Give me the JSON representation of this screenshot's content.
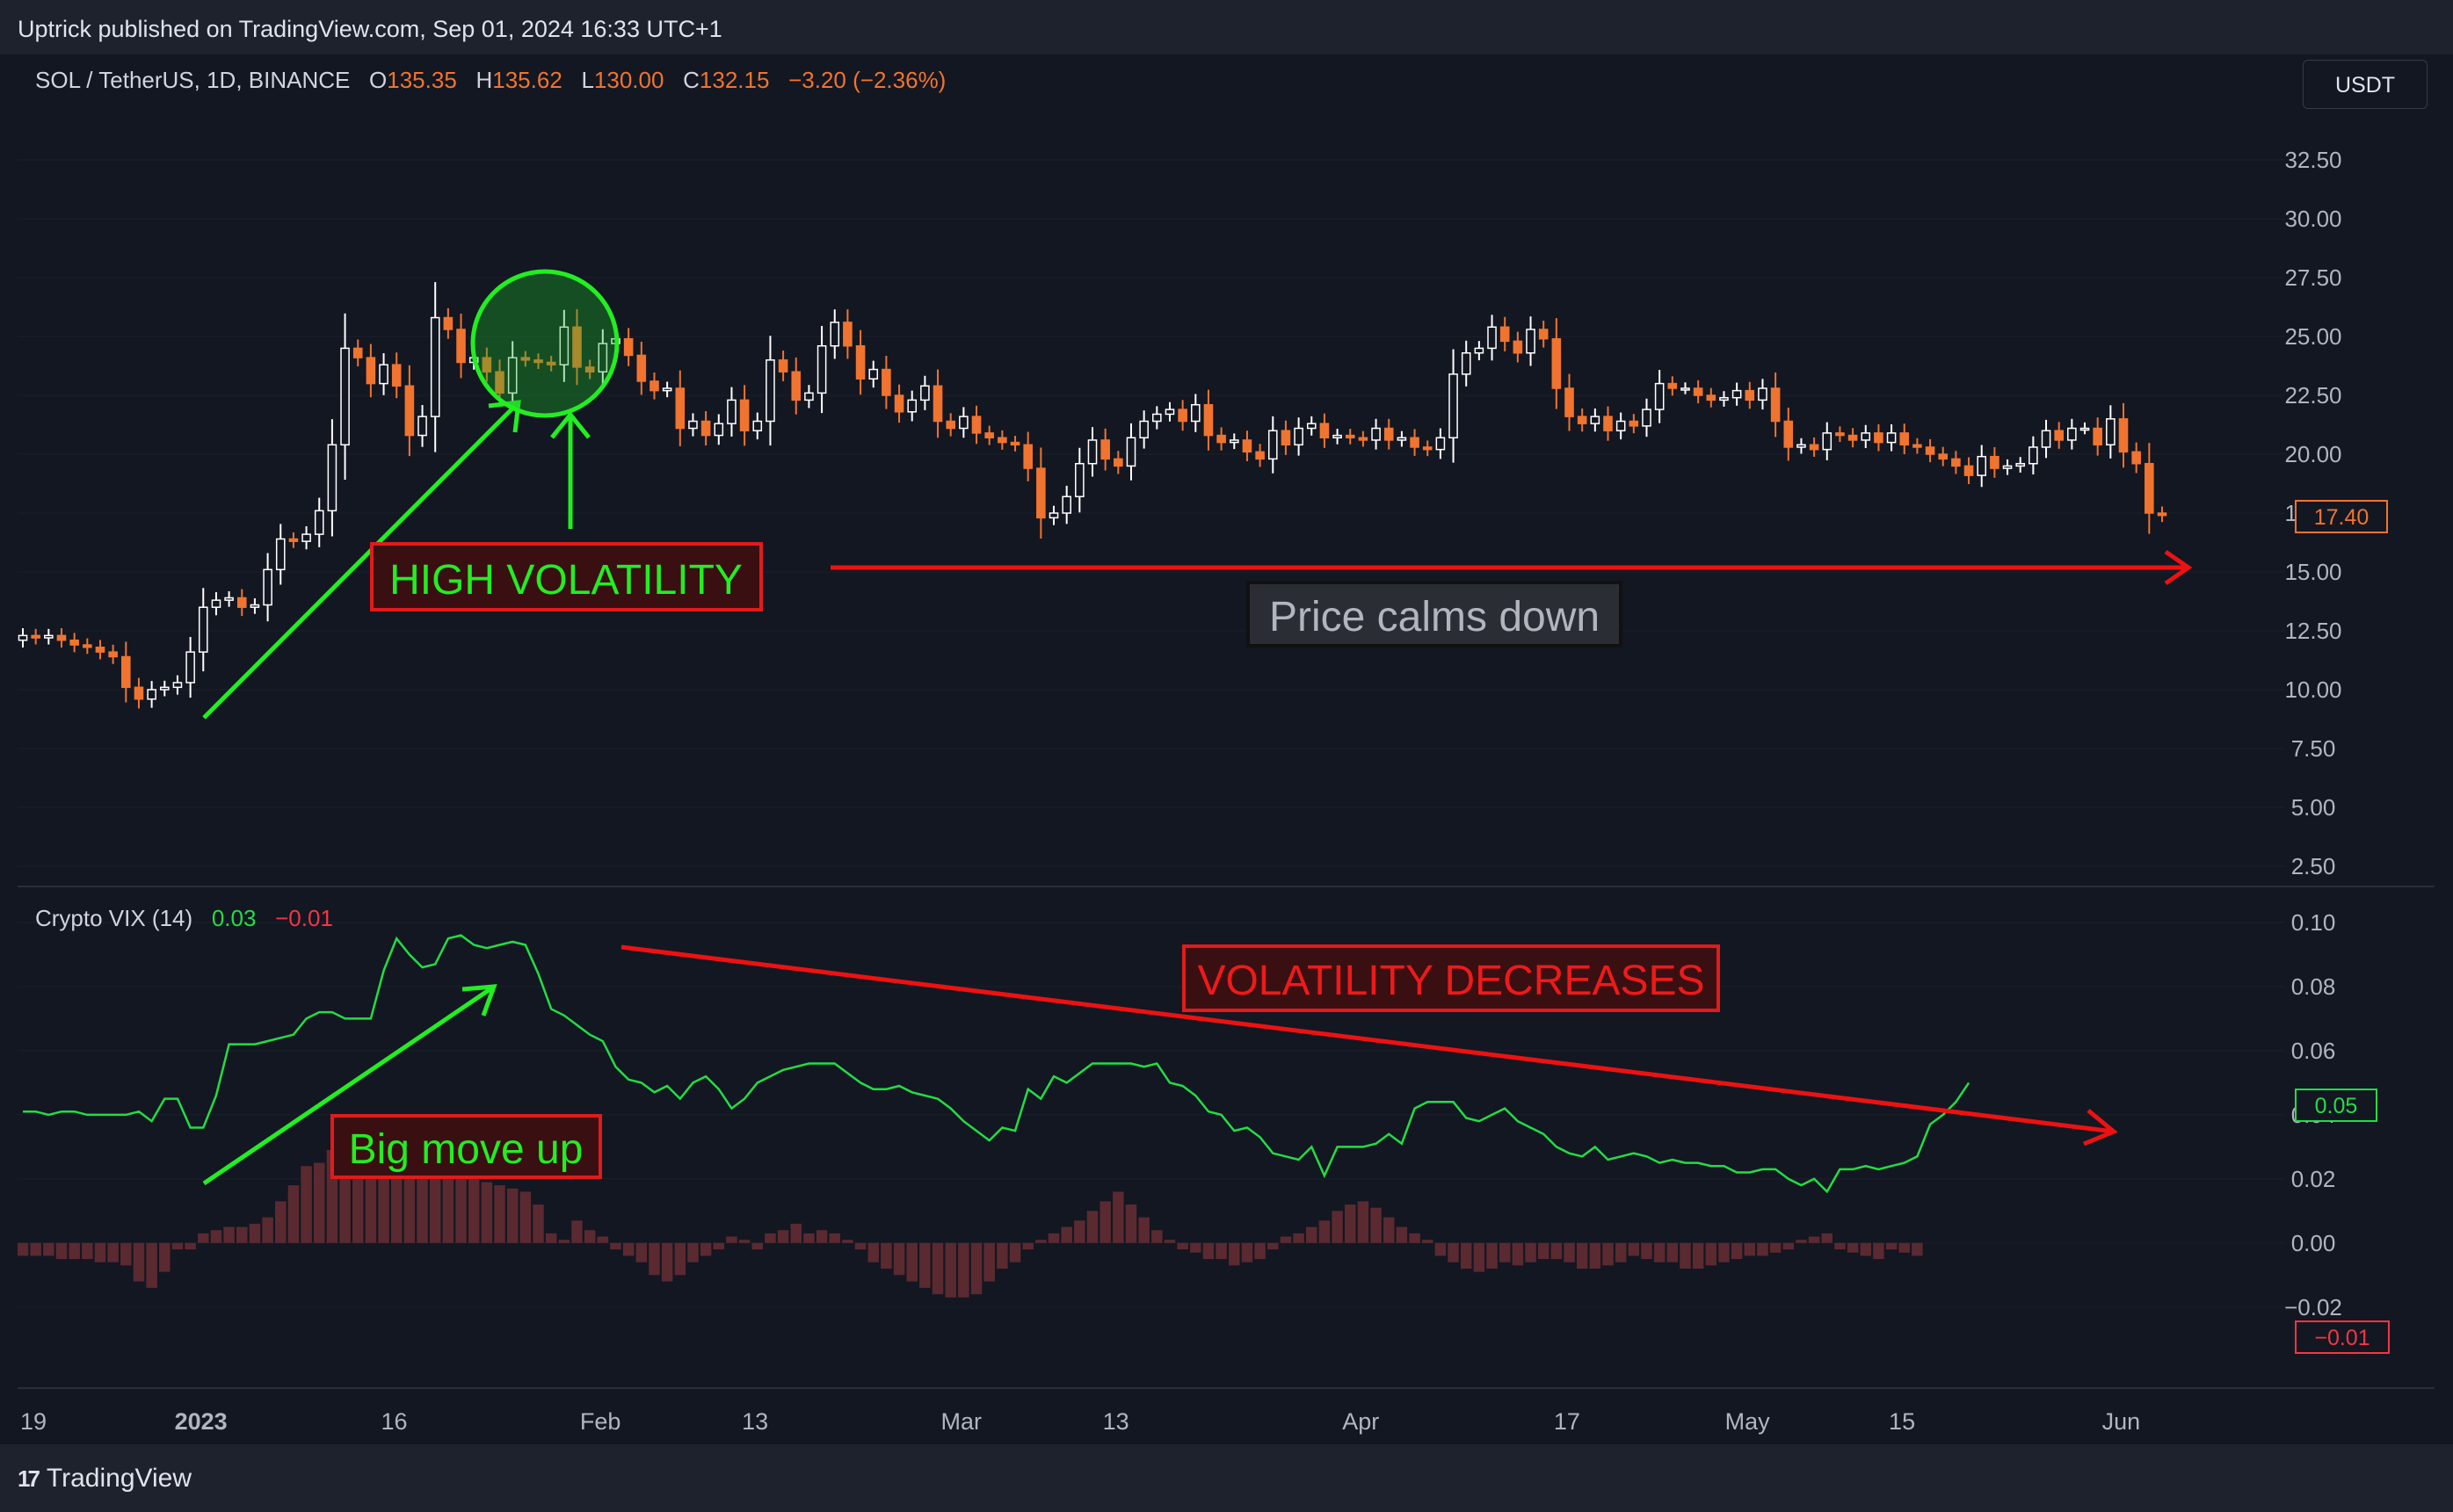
{
  "header": {
    "published": "Uptrick published on TradingView.com, Sep 01, 2024 16:33 UTC+1"
  },
  "footer": {
    "brand": "TradingView"
  },
  "currency": "USDT",
  "legend_main": {
    "symbol": "SOL / TetherUS, 1D, BINANCE",
    "o_label": "O",
    "o": "135.35",
    "h_label": "H",
    "h": "135.62",
    "l_label": "L",
    "l": "130.00",
    "c_label": "C",
    "c": "132.15",
    "change": "−3.20 (−2.36%)"
  },
  "legend_vix": {
    "name": "Crypto VIX (14)",
    "v1": "0.03",
    "v2": "−0.01"
  },
  "annotations": {
    "high_volatility": "HIGH VOLATILITY",
    "price_calms": "Price calms down",
    "vol_decreases": "VOLATILITY DECREASES",
    "big_move": "Big move up"
  },
  "colors": {
    "up": "#ffffff",
    "down": "#f0742f",
    "vix_line": "#22dd44",
    "histogram": "#5a2a30",
    "arrow_green": "#22ee22",
    "arrow_red": "#ee1111",
    "background": "#131722"
  },
  "chart_data": [
    {
      "type": "candlestick",
      "title": "SOL / TetherUS, 1D, BINANCE",
      "y_ticks": [
        "32.50",
        "30.00",
        "27.50",
        "25.00",
        "22.50",
        "20.00",
        "17.50",
        "15.00",
        "12.50",
        "10.00",
        "7.50",
        "5.00",
        "2.50"
      ],
      "ylim": [
        2.5,
        32.5
      ],
      "x_ticks": [
        "19",
        "2023",
        "16",
        "Feb",
        "13",
        "Mar",
        "13",
        "Apr",
        "17",
        "May",
        "15",
        "Jun"
      ],
      "last_price_label": "17.40",
      "closes": [
        12.3,
        12.2,
        12.3,
        12.1,
        11.9,
        11.8,
        11.6,
        11.4,
        10.1,
        9.6,
        10.0,
        10.1,
        10.3,
        11.6,
        13.5,
        13.8,
        13.9,
        13.5,
        13.6,
        15.1,
        16.4,
        16.3,
        16.6,
        17.6,
        20.4,
        24.5,
        24.1,
        23.0,
        23.8,
        22.9,
        20.8,
        21.6,
        25.8,
        25.3,
        23.9,
        24.1,
        23.5,
        22.6,
        24.1,
        24.0,
        23.9,
        23.8,
        25.4,
        23.7,
        23.5,
        24.7,
        24.9,
        24.2,
        23.1,
        22.7,
        22.8,
        21.1,
        21.4,
        20.8,
        21.3,
        22.3,
        21.0,
        21.4,
        24.0,
        23.5,
        22.3,
        22.6,
        24.6,
        25.6,
        24.6,
        23.2,
        23.6,
        22.5,
        21.8,
        22.3,
        22.9,
        21.4,
        21.1,
        21.6,
        20.9,
        20.7,
        20.5,
        20.4,
        19.4,
        17.3,
        17.5,
        18.2,
        19.6,
        20.6,
        19.8,
        19.5,
        20.7,
        21.4,
        21.7,
        21.9,
        21.4,
        22.1,
        20.8,
        20.5,
        20.6,
        20.1,
        19.8,
        21.0,
        20.4,
        21.1,
        21.3,
        20.7,
        20.8,
        20.7,
        20.6,
        21.1,
        20.6,
        20.7,
        20.3,
        20.2,
        20.7,
        23.4,
        24.3,
        24.5,
        25.4,
        24.8,
        24.3,
        25.3,
        24.9,
        22.8,
        21.6,
        21.3,
        21.6,
        21.0,
        21.4,
        21.2,
        21.9,
        23.0,
        22.8,
        22.8,
        22.5,
        22.3,
        22.4,
        22.7,
        22.3,
        22.8,
        21.4,
        20.3,
        20.4,
        20.2,
        20.9,
        20.8,
        20.6,
        20.9,
        20.5,
        20.9,
        20.4,
        20.3,
        20.0,
        19.8,
        19.5,
        19.1,
        19.9,
        19.4,
        19.5,
        19.6,
        20.3,
        21.0,
        20.6,
        21.1,
        21.1,
        20.4,
        21.5,
        20.1,
        19.6,
        17.5,
        17.4
      ]
    },
    {
      "type": "line",
      "title": "Crypto VIX (14)",
      "y_ticks": [
        "0.10",
        "0.08",
        "0.06",
        "0.04",
        "0.02",
        "0.00",
        "−0.02"
      ],
      "ylim": [
        -0.025,
        0.1
      ],
      "last_value_labels": [
        "0.05",
        "−0.01"
      ],
      "series": [
        {
          "values": [
            0.041,
            0.041,
            0.04,
            0.041,
            0.041,
            0.04,
            0.04,
            0.04,
            0.04,
            0.041,
            0.038,
            0.045,
            0.045,
            0.036,
            0.036,
            0.046,
            0.062,
            0.062,
            0.062,
            0.063,
            0.064,
            0.065,
            0.07,
            0.072,
            0.072,
            0.07,
            0.07,
            0.07,
            0.085,
            0.095,
            0.09,
            0.086,
            0.087,
            0.095,
            0.096,
            0.093,
            0.092,
            0.093,
            0.094,
            0.093,
            0.084,
            0.073,
            0.071,
            0.068,
            0.065,
            0.063,
            0.055,
            0.051,
            0.05,
            0.047,
            0.049,
            0.045,
            0.05,
            0.052,
            0.048,
            0.042,
            0.045,
            0.05,
            0.052,
            0.054,
            0.055,
            0.056,
            0.056,
            0.056,
            0.053,
            0.05,
            0.048,
            0.048,
            0.049,
            0.047,
            0.046,
            0.045,
            0.042,
            0.038,
            0.035,
            0.032,
            0.036,
            0.035,
            0.048,
            0.045,
            0.052,
            0.05,
            0.053,
            0.056,
            0.056,
            0.056,
            0.056,
            0.055,
            0.056,
            0.05,
            0.049,
            0.046,
            0.041,
            0.04,
            0.035,
            0.036,
            0.033,
            0.028,
            0.027,
            0.026,
            0.03,
            0.021,
            0.03,
            0.03,
            0.03,
            0.031,
            0.034,
            0.031,
            0.042,
            0.044,
            0.044,
            0.044,
            0.039,
            0.038,
            0.04,
            0.042,
            0.038,
            0.036,
            0.034,
            0.03,
            0.028,
            0.027,
            0.03,
            0.026,
            0.027,
            0.028,
            0.027,
            0.025,
            0.026,
            0.025,
            0.025,
            0.024,
            0.024,
            0.022,
            0.022,
            0.023,
            0.023,
            0.02,
            0.018,
            0.02,
            0.016,
            0.023,
            0.023,
            0.024,
            0.023,
            0.024,
            0.025,
            0.027,
            0.037,
            0.04,
            0.044,
            0.05
          ]
        },
        {
          "type": "bar",
          "values": [
            -0.004,
            -0.004,
            -0.004,
            -0.005,
            -0.005,
            -0.005,
            -0.006,
            -0.006,
            -0.007,
            -0.012,
            -0.014,
            -0.009,
            -0.002,
            -0.002,
            0.003,
            0.004,
            0.005,
            0.005,
            0.006,
            0.008,
            0.013,
            0.018,
            0.024,
            0.025,
            0.029,
            0.034,
            0.035,
            0.032,
            0.028,
            0.026,
            0.024,
            0.024,
            0.023,
            0.022,
            0.021,
            0.021,
            0.019,
            0.018,
            0.017,
            0.016,
            0.012,
            0.003,
            0.001,
            0.007,
            0.004,
            0.002,
            -0.002,
            -0.004,
            -0.006,
            -0.01,
            -0.012,
            -0.01,
            -0.006,
            -0.004,
            -0.002,
            0.002,
            0.001,
            -0.002,
            0.003,
            0.004,
            0.006,
            0.003,
            0.004,
            0.003,
            0.001,
            -0.002,
            -0.006,
            -0.008,
            -0.01,
            -0.012,
            -0.014,
            -0.016,
            -0.017,
            -0.017,
            -0.016,
            -0.012,
            -0.008,
            -0.006,
            -0.002,
            0.001,
            0.003,
            0.005,
            0.007,
            0.01,
            0.013,
            0.016,
            0.012,
            0.008,
            0.004,
            0.001,
            -0.002,
            -0.003,
            -0.005,
            -0.005,
            -0.007,
            -0.006,
            -0.005,
            -0.002,
            0.002,
            0.003,
            0.005,
            0.007,
            0.01,
            0.012,
            0.013,
            0.011,
            0.008,
            0.005,
            0.003,
            0.001,
            -0.004,
            -0.006,
            -0.008,
            -0.009,
            -0.008,
            -0.006,
            -0.007,
            -0.006,
            -0.005,
            -0.005,
            -0.006,
            -0.008,
            -0.008,
            -0.007,
            -0.006,
            -0.004,
            -0.005,
            -0.006,
            -0.006,
            -0.008,
            -0.008,
            -0.007,
            -0.006,
            -0.005,
            -0.004,
            -0.004,
            -0.003,
            -0.002,
            0.001,
            0.002,
            0.003,
            -0.002,
            -0.003,
            -0.004,
            -0.005,
            -0.002,
            -0.003,
            -0.004
          ]
        }
      ]
    }
  ]
}
